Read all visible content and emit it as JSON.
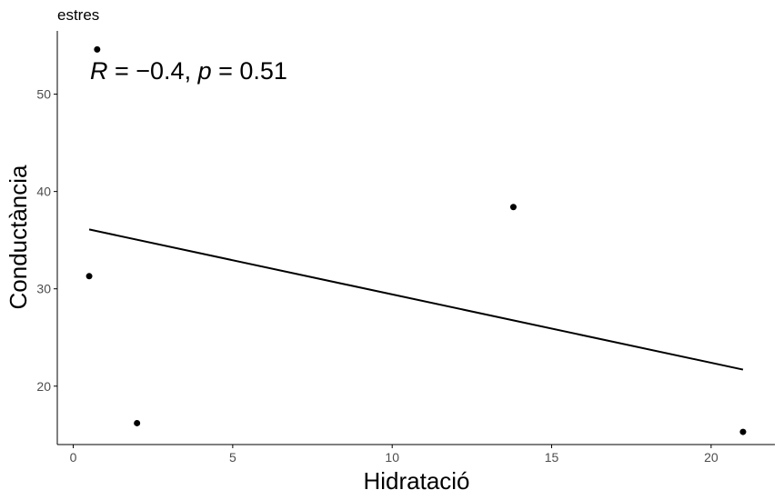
{
  "chart_data": {
    "type": "scatter",
    "title": "estres",
    "xlabel": "Hidratació",
    "ylabel": "Conductància",
    "xlim": [
      -0.5,
      22
    ],
    "ylim": [
      14,
      56.5
    ],
    "x_ticks": [
      0,
      5,
      10,
      15,
      20
    ],
    "y_ticks": [
      20,
      30,
      40,
      50
    ],
    "points": [
      {
        "x": 0.5,
        "y": 31.3
      },
      {
        "x": 0.75,
        "y": 54.6
      },
      {
        "x": 2.0,
        "y": 16.2
      },
      {
        "x": 13.8,
        "y": 38.4
      },
      {
        "x": 21.0,
        "y": 15.3
      }
    ],
    "regression_line": {
      "x": [
        0.5,
        21.0
      ],
      "y": [
        36.1,
        21.7
      ]
    },
    "annotation": {
      "R_symbol": "R",
      "R_text": " = −0.4, ",
      "p_symbol": "p",
      "p_text": " = 0.51"
    },
    "grid": false,
    "legend": "none",
    "colors": {
      "points": "#000000",
      "line": "#000000",
      "axis": "#000000"
    }
  }
}
